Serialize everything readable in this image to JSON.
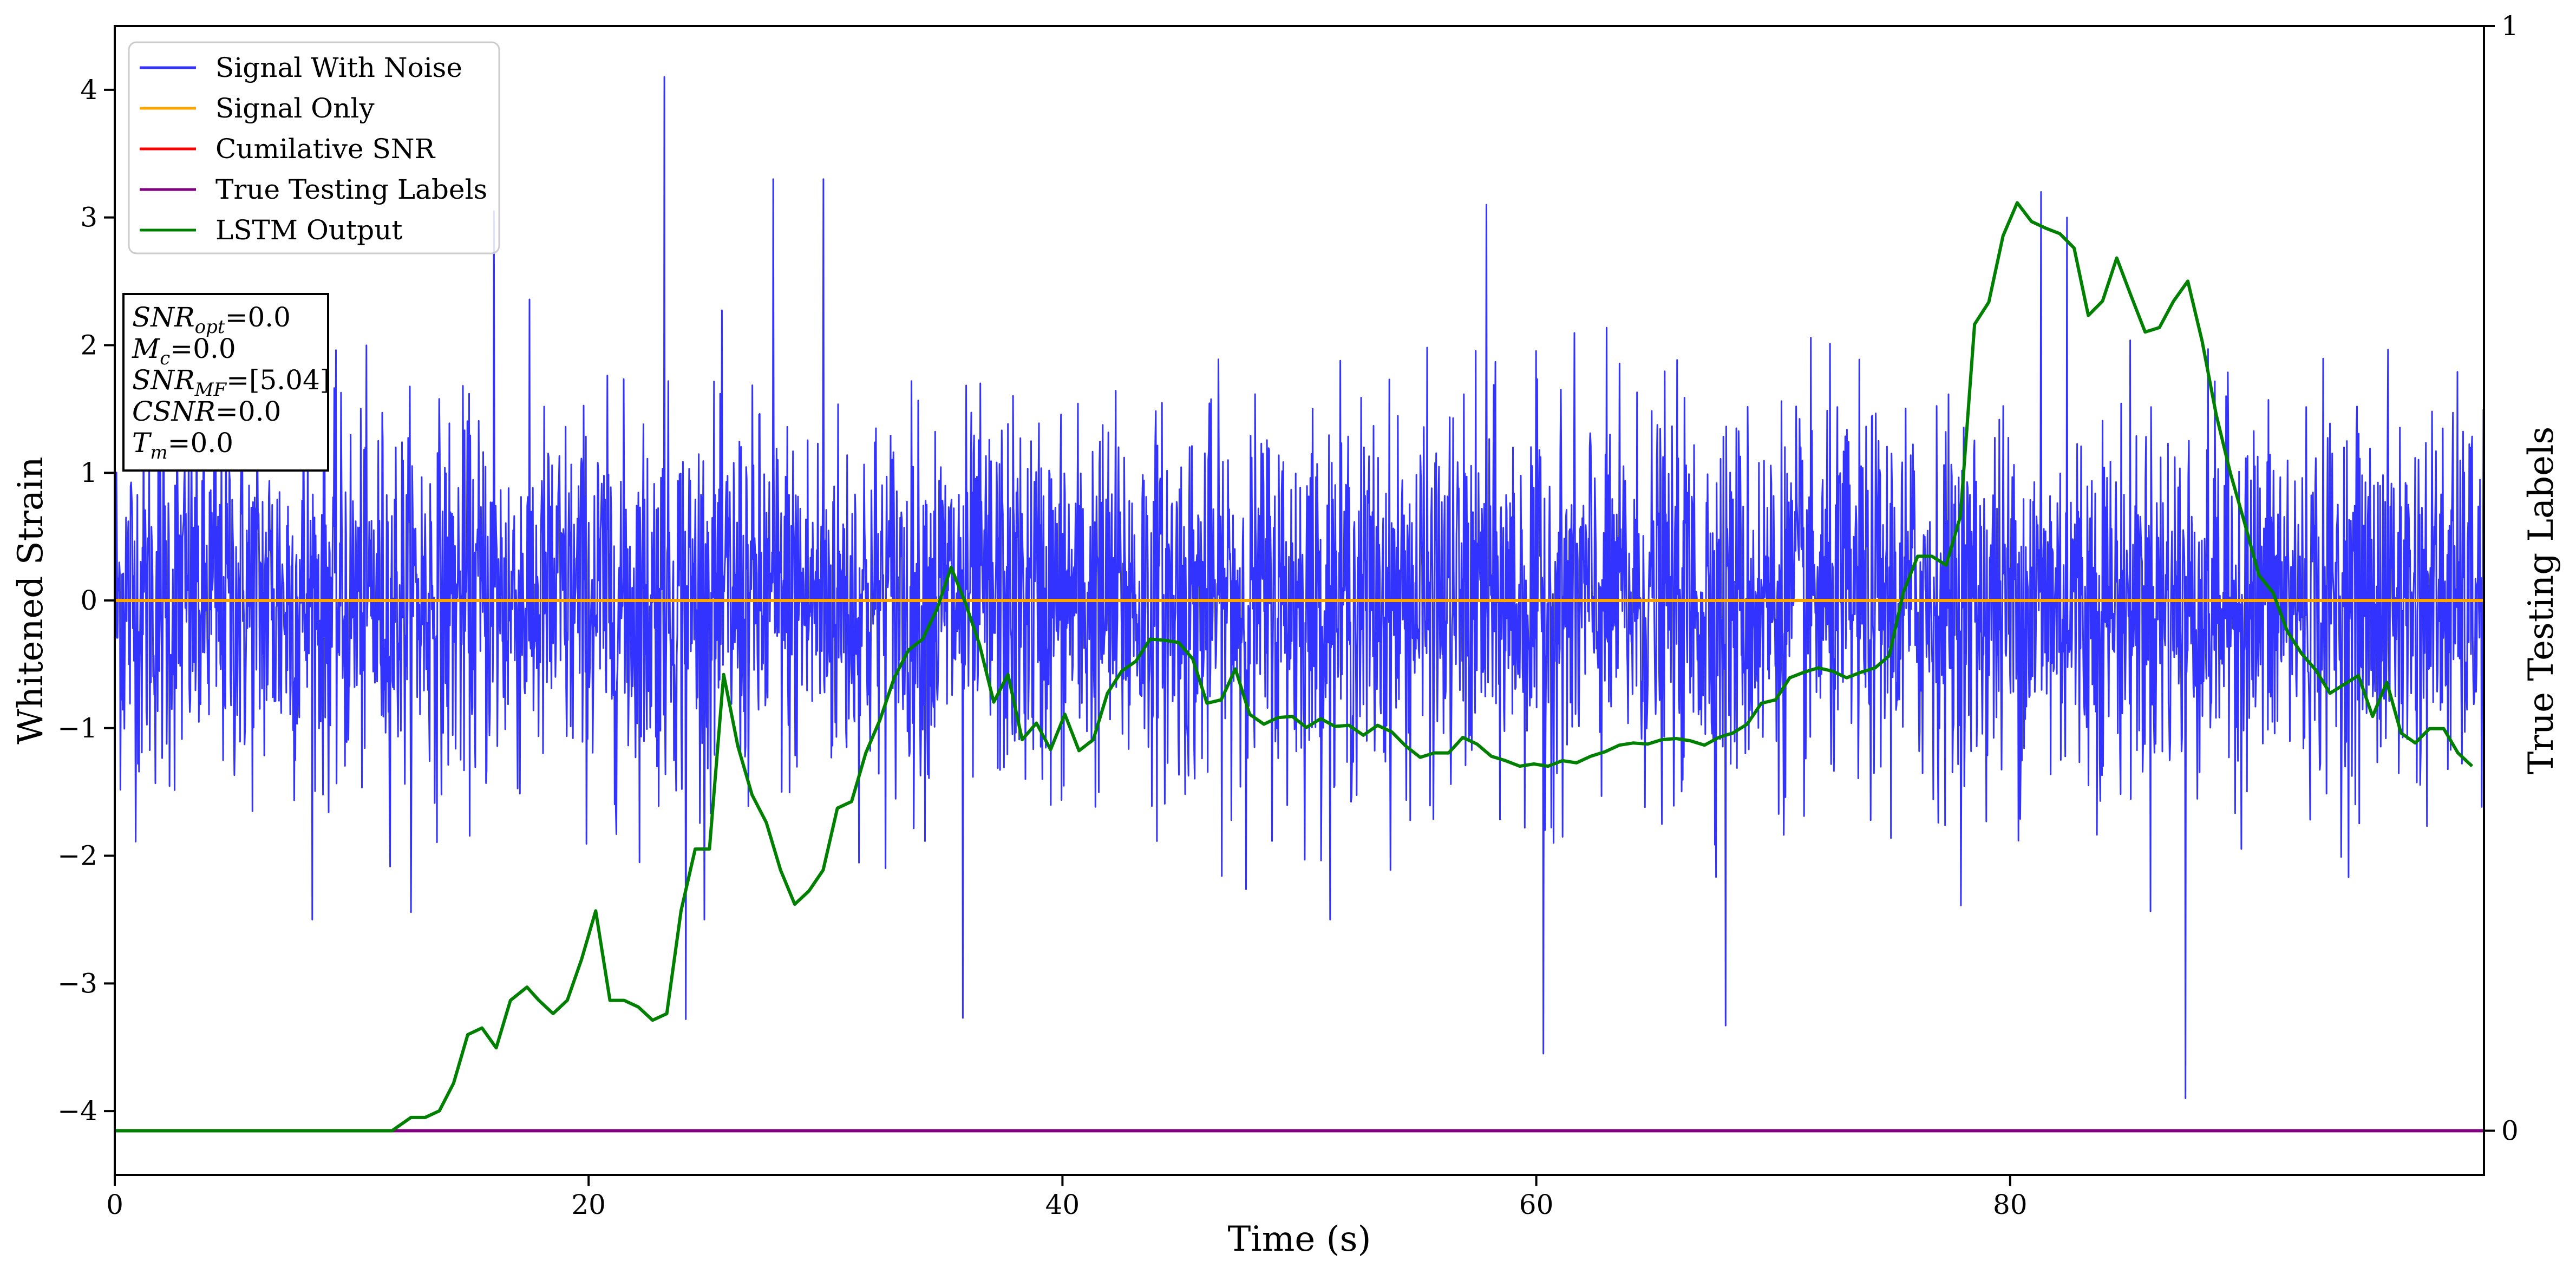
{
  "chart_data": {
    "type": "line",
    "xlabel": "Time (s)",
    "ylabel": "Whitened Strain",
    "ylabel_right": "True Testing Labels",
    "xlim": [
      0,
      100
    ],
    "ylim": [
      -4.5,
      4.5
    ],
    "ylim_right": [
      -0.04,
      1.0
    ],
    "x_ticks": [
      0,
      20,
      40,
      60,
      80
    ],
    "y_ticks": [
      -4,
      -3,
      -2,
      -1,
      0,
      1,
      2,
      3,
      4
    ],
    "y_ticks_right": [
      0,
      1
    ],
    "grid": false,
    "legend_position": "top-left",
    "colors": {
      "signal_with_noise": "#3333ff",
      "signal_only": "#ffa500",
      "cumulative_snr": "#ff0000",
      "true_labels": "#800080",
      "lstm_output": "#008000"
    },
    "legend": [
      {
        "name": "Signal With Noise",
        "color": "#3333ff"
      },
      {
        "name": "Signal Only",
        "color": "#ffa500"
      },
      {
        "name": "Cumilative SNR",
        "color": "#ff0000"
      },
      {
        "name": "True Testing Labels",
        "color": "#800080"
      },
      {
        "name": "LSTM Output",
        "color": "#008000"
      }
    ],
    "series": [
      {
        "name": "Signal With Noise",
        "axis": "left",
        "description_values": {
          "min": -3.9,
          "max": 4.1,
          "typical_upper": 1.5,
          "typical_lower": -1.5
        },
        "notable_peaks": [
          [
            23.2,
            4.1
          ],
          [
            27.8,
            3.3
          ],
          [
            29.9,
            3.3
          ],
          [
            57.9,
            3.1
          ],
          [
            81.3,
            3.2
          ],
          [
            82.4,
            3.0
          ],
          [
            16.0,
            3.05
          ],
          [
            87.4,
            -3.9
          ],
          [
            60.3,
            -3.55
          ],
          [
            68.0,
            -3.33
          ],
          [
            24.1,
            -3.28
          ],
          [
            35.8,
            -3.27
          ]
        ]
      },
      {
        "name": "Signal Only",
        "axis": "left",
        "x": [
          0,
          100
        ],
        "y": [
          0,
          0
        ]
      },
      {
        "name": "True Testing Labels",
        "axis": "right",
        "x": [
          0,
          100
        ],
        "y": [
          0,
          0
        ]
      },
      {
        "name": "LSTM Output",
        "axis": "right",
        "x": [
          0,
          11.7,
          12.5,
          13.1,
          13.7,
          14.3,
          14.9,
          15.5,
          16.1,
          16.7,
          17.4,
          17.9,
          18.5,
          19.1,
          19.7,
          20.3,
          20.9,
          21.5,
          22.1,
          22.7,
          23.3,
          23.9,
          24.5,
          25.1,
          25.7,
          26.3,
          26.9,
          27.5,
          28.1,
          28.7,
          29.3,
          29.9,
          30.5,
          31.1,
          31.7,
          32.3,
          32.9,
          33.5,
          34.1,
          34.7,
          35.3,
          35.9,
          36.5,
          37.1,
          37.7,
          38.3,
          38.9,
          39.5,
          40.1,
          40.7,
          41.3,
          41.9,
          42.5,
          43.1,
          43.7,
          44.3,
          44.9,
          45.5,
          46.1,
          46.7,
          47.3,
          47.9,
          48.5,
          49.1,
          49.7,
          50.3,
          50.9,
          51.5,
          52.1,
          52.7,
          53.3,
          53.9,
          54.5,
          55.1,
          55.7,
          56.3,
          56.9,
          57.5,
          58.1,
          58.7,
          59.3,
          59.9,
          60.5,
          61.1,
          61.7,
          62.3,
          62.9,
          63.5,
          64.1,
          64.7,
          65.3,
          65.9,
          66.5,
          67.1,
          67.7,
          68.3,
          68.9,
          69.5,
          70.1,
          70.7,
          71.3,
          71.9,
          72.5,
          73.1,
          73.7,
          74.3,
          74.9,
          75.5,
          76.1,
          76.7,
          77.3,
          77.9,
          78.5,
          79.1,
          79.7,
          80.3,
          80.9,
          81.5,
          82.1,
          82.7,
          83.3,
          83.9,
          84.5,
          85.1,
          85.7,
          86.3,
          86.9,
          87.5,
          88.1,
          88.7,
          89.3,
          89.9,
          90.5,
          91.1,
          91.7,
          92.3,
          92.9,
          93.5,
          94.1,
          94.7,
          95.3,
          95.9,
          96.5,
          97.1,
          97.7,
          98.3,
          98.9,
          99.5
        ],
        "y": [
          0.0,
          0.0,
          0.012,
          0.012,
          0.018,
          0.043,
          0.087,
          0.093,
          0.075,
          0.118,
          0.13,
          0.118,
          0.106,
          0.118,
          0.155,
          0.199,
          0.118,
          0.118,
          0.112,
          0.1,
          0.106,
          0.199,
          0.255,
          0.255,
          0.413,
          0.348,
          0.304,
          0.279,
          0.236,
          0.205,
          0.217,
          0.236,
          0.292,
          0.298,
          0.342,
          0.372,
          0.41,
          0.435,
          0.445,
          0.472,
          0.51,
          0.478,
          0.44,
          0.388,
          0.413,
          0.354,
          0.369,
          0.345,
          0.377,
          0.344,
          0.354,
          0.396,
          0.416,
          0.425,
          0.445,
          0.444,
          0.442,
          0.427,
          0.387,
          0.39,
          0.418,
          0.377,
          0.368,
          0.374,
          0.375,
          0.365,
          0.373,
          0.366,
          0.367,
          0.358,
          0.367,
          0.361,
          0.348,
          0.338,
          0.342,
          0.342,
          0.356,
          0.35,
          0.339,
          0.335,
          0.33,
          0.332,
          0.33,
          0.335,
          0.333,
          0.339,
          0.343,
          0.349,
          0.351,
          0.35,
          0.354,
          0.355,
          0.353,
          0.349,
          0.356,
          0.36,
          0.368,
          0.387,
          0.39,
          0.41,
          0.415,
          0.419,
          0.416,
          0.41,
          0.415,
          0.419,
          0.43,
          0.488,
          0.52,
          0.52,
          0.512,
          0.556,
          0.73,
          0.75,
          0.81,
          0.84,
          0.823,
          0.817,
          0.812,
          0.799,
          0.738,
          0.751,
          0.79,
          0.756,
          0.723,
          0.727,
          0.751,
          0.769,
          0.715,
          0.648,
          0.595,
          0.55,
          0.503,
          0.487,
          0.452,
          0.432,
          0.417,
          0.396,
          0.404,
          0.412,
          0.375,
          0.406,
          0.36,
          0.351,
          0.364,
          0.364,
          0.342,
          0.33
        ]
      }
    ],
    "annotation_box": {
      "lines": [
        {
          "main": "SNR",
          "sub": "opt",
          "rest": "=0.0"
        },
        {
          "main": "M",
          "sub": "c",
          "rest": "=0.0"
        },
        {
          "main": "SNR",
          "sub": "MF",
          "rest": "=[5.04]"
        },
        {
          "main": "CSNR",
          "sub": "",
          "rest": "=0.0"
        },
        {
          "main": "T",
          "sub": "m",
          "rest": "=0.0"
        }
      ]
    }
  }
}
